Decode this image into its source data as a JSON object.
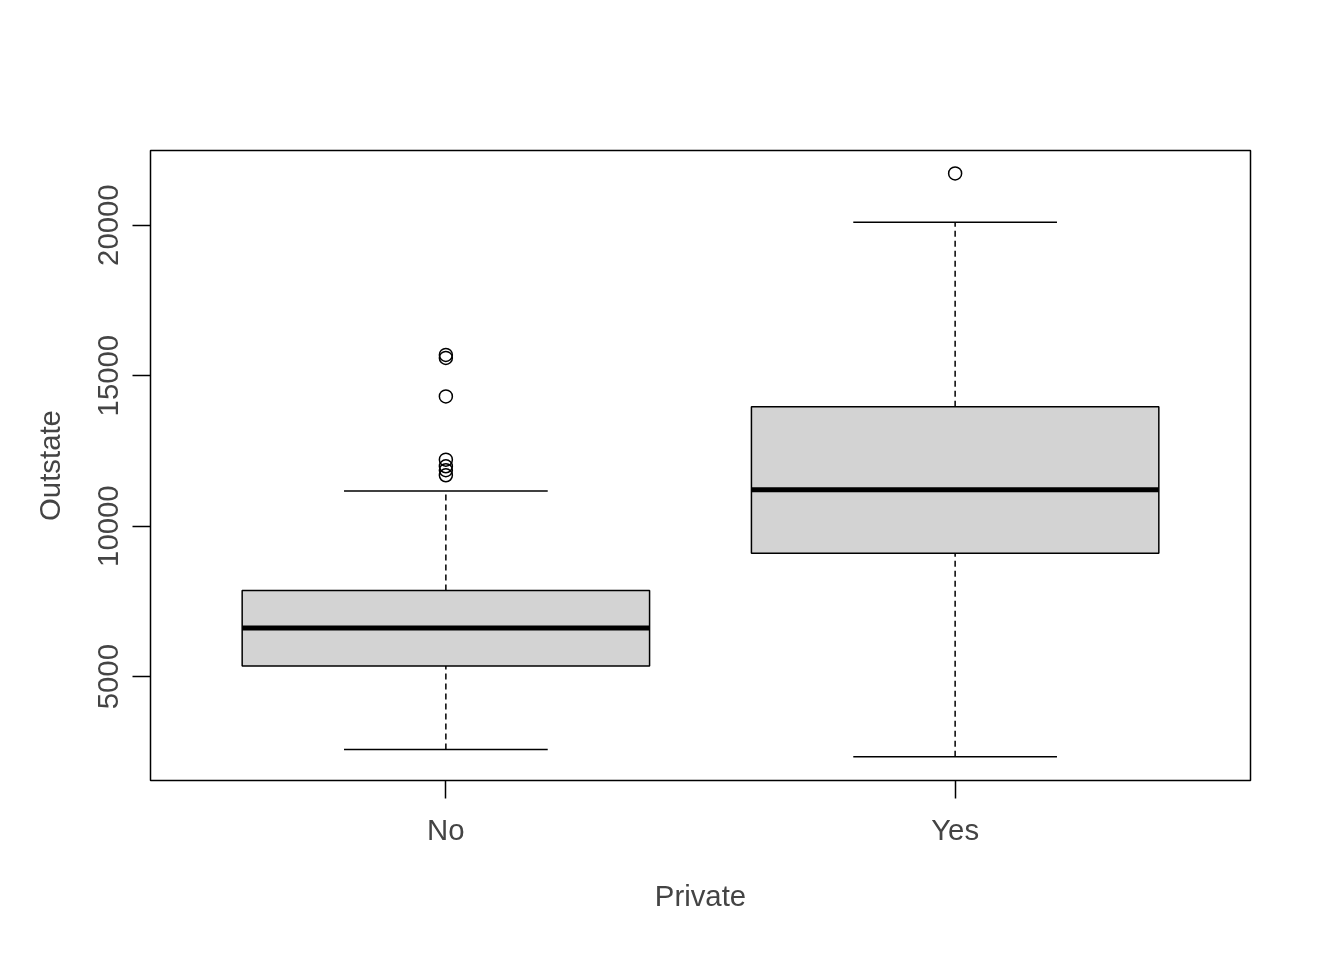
{
  "chart_data": {
    "type": "box",
    "xlabel": "Private",
    "ylabel": "Outstate",
    "categories": [
      "No",
      "Yes"
    ],
    "boxes": [
      {
        "low": 2580,
        "q1": 5350,
        "median": 6620,
        "q3": 7860,
        "high": 11170,
        "outliers": [
          15690,
          15590,
          14310,
          12210,
          11990,
          11860,
          11690
        ]
      },
      {
        "low": 2340,
        "q1": 9100,
        "median": 11210,
        "q3": 13970,
        "high": 20100,
        "outliers": [
          21720
        ]
      }
    ],
    "ylim": [
      1550,
      22480
    ],
    "yticks": [
      5000,
      10000,
      15000,
      20000
    ]
  }
}
